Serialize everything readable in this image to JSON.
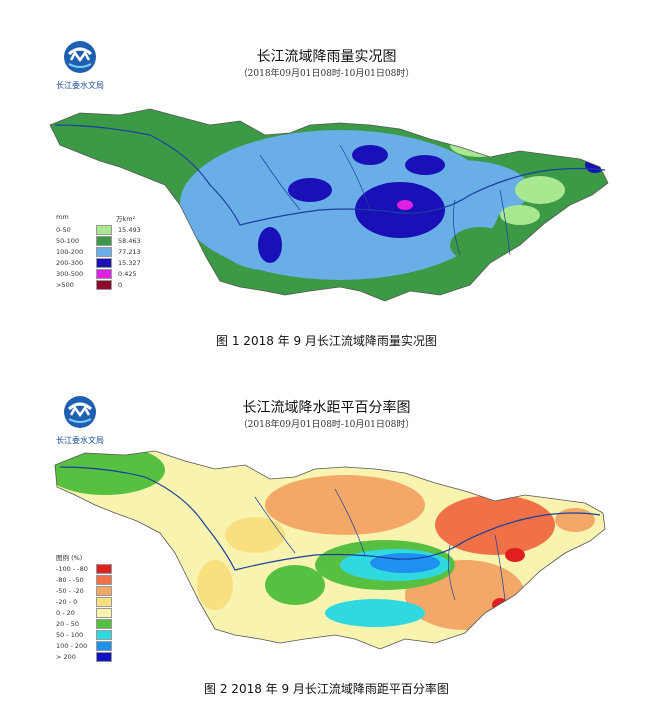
{
  "org_name": "长江委水文局",
  "figure1": {
    "title": "长江流域降雨量实况图",
    "subtitle": "（2018年09月01日08时-10月01日08时）",
    "caption": "图 1    2018 年 9 月长江流域降雨量实况图",
    "legend": {
      "unit_left": "mm",
      "unit_right": "万km²",
      "items": [
        {
          "label": "0-50",
          "color": "#a8e890",
          "value": "15.493"
        },
        {
          "label": "50-100",
          "color": "#3c9a46",
          "value": "58.463"
        },
        {
          "label": "100-200",
          "color": "#6aaee8",
          "value": "77.213"
        },
        {
          "label": "200-300",
          "color": "#1a10b8",
          "value": "15.327"
        },
        {
          "label": "300-500",
          "color": "#e020e0",
          "value": "0.425"
        },
        {
          "label": ">500",
          "color": "#8a0a2a",
          "value": "0"
        }
      ]
    }
  },
  "figure2": {
    "title": "长江流域降水距平百分率图",
    "subtitle": "（2018年09月01日08时-10月01日08时）",
    "caption": "图 2    2018 年 9 月长江流域降雨距平百分率图",
    "legend": {
      "header": "图例  (%)",
      "items": [
        {
          "label": "-100 - -80",
          "color": "#e02020"
        },
        {
          "label": "-80 - -50",
          "color": "#f07048"
        },
        {
          "label": "-50 - -20",
          "color": "#f4a868"
        },
        {
          "label": "-20 - 0",
          "color": "#f8e080"
        },
        {
          "label": "0 - 20",
          "color": "#f8f4b0"
        },
        {
          "label": "20 - 50",
          "color": "#58c040"
        },
        {
          "label": "50 - 100",
          "color": "#30d8e0"
        },
        {
          "label": "100 - 200",
          "color": "#2090f0"
        },
        {
          "label": "> 200",
          "color": "#1010c8"
        }
      ]
    }
  }
}
